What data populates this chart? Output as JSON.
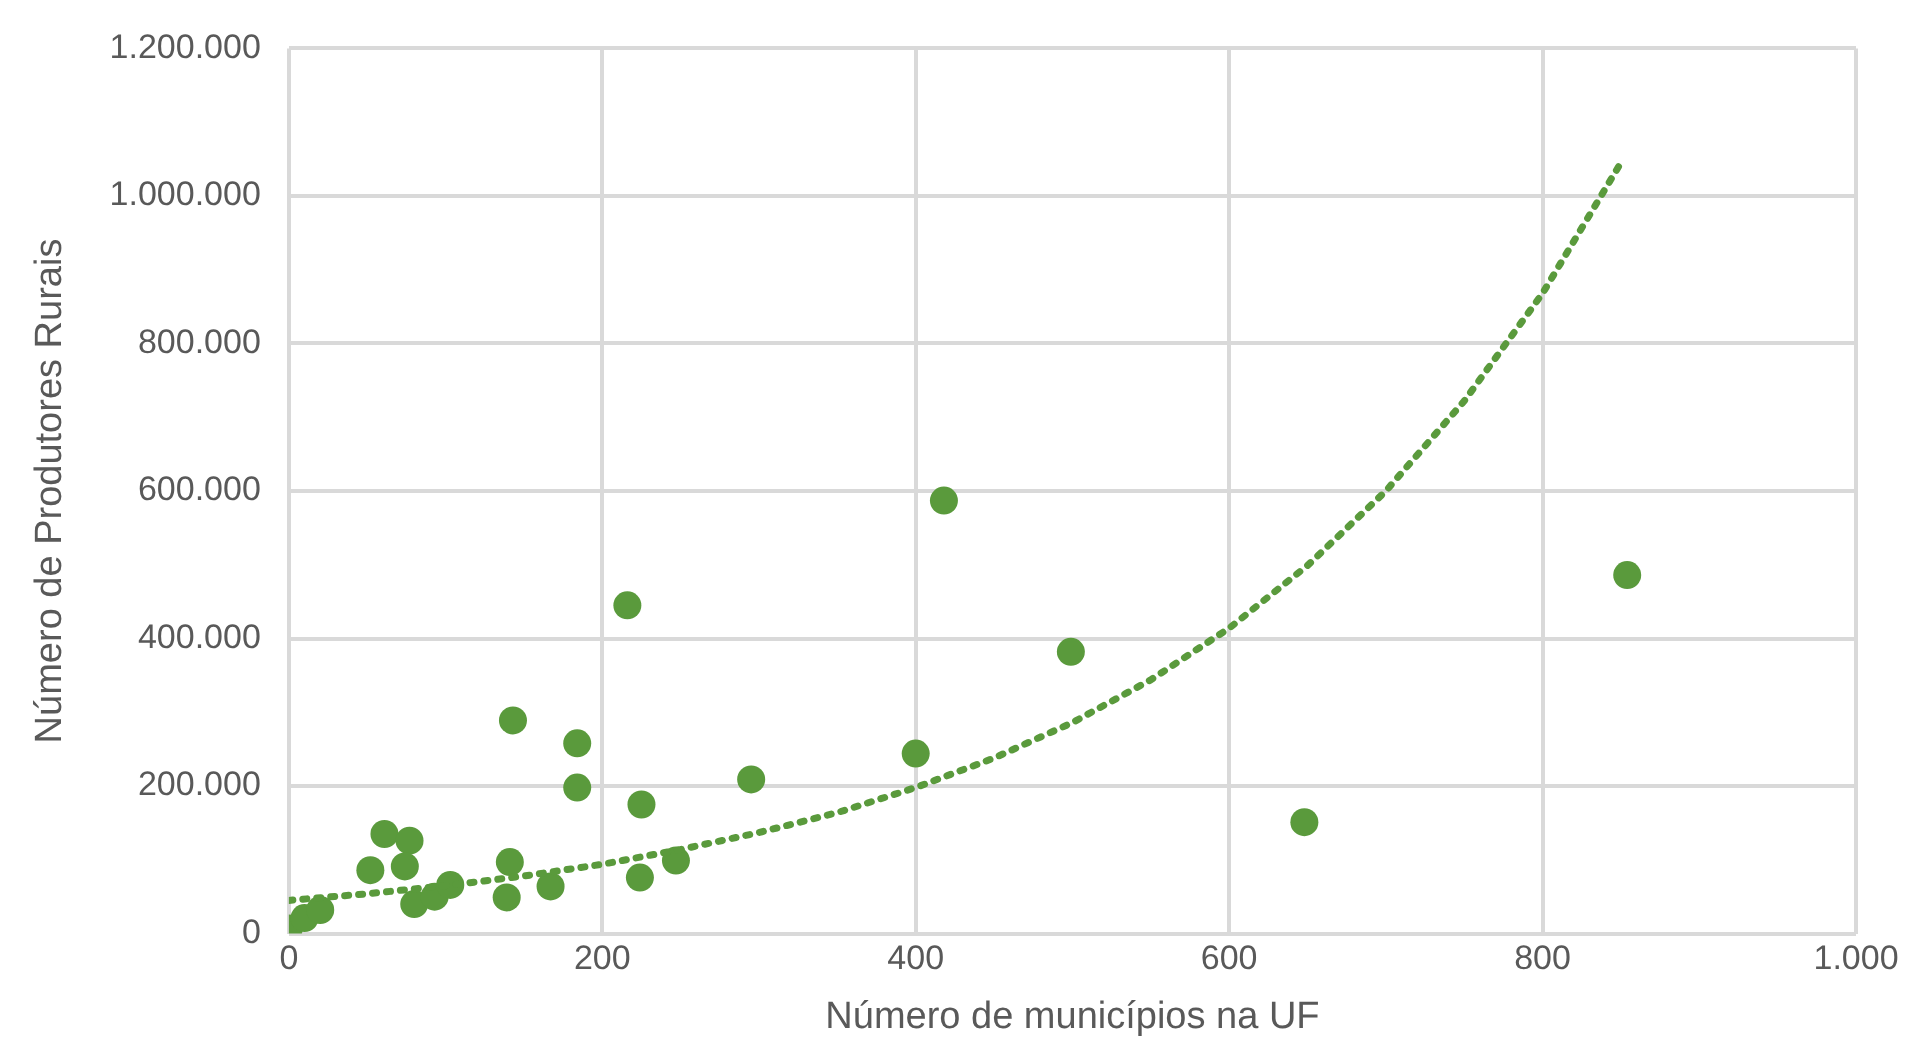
{
  "chart_data": {
    "type": "scatter",
    "xlabel": "Número de municípios na UF",
    "ylabel": "Número de Produtores Rurais",
    "xlim": [
      0,
      1000
    ],
    "xticks": [
      0,
      200,
      400,
      600,
      800,
      {
        "value": 1000,
        "label": "1.000"
      }
    ],
    "ylim": [
      0,
      1200000
    ],
    "yticks": [
      0,
      {
        "value": 200000,
        "label": "200.000"
      },
      {
        "value": 400000,
        "label": "400.000"
      },
      {
        "value": 600000,
        "label": "600.000"
      },
      {
        "value": 800000,
        "label": "800.000"
      },
      {
        "value": 1000000,
        "label": "1.000.000"
      },
      {
        "value": 1200000,
        "label": "1.200.000"
      }
    ],
    "grid": true,
    "legend": false,
    "marker": "circle",
    "series": [
      {
        "type": "scatter",
        "color": "#5a9a3c",
        "x": [
          854,
          648,
          418,
          499,
          400,
          295,
          247,
          216,
          143,
          184,
          184,
          225,
          224,
          141,
          139,
          167,
          61,
          77,
          74,
          52,
          80,
          93,
          103,
          0,
          10,
          20
        ],
        "values": [
          486000,
          151000,
          587000,
          382000,
          244000,
          209000,
          99000,
          445000,
          289000,
          258000,
          198000,
          175000,
          76000,
          97000,
          49000,
          64000,
          135000,
          126000,
          91000,
          86000,
          40000,
          50000,
          66000,
          7000,
          21000,
          32000
        ]
      },
      {
        "type": "line",
        "color": "#5a9a3c",
        "line_style": "dotted",
        "marker": "none",
        "x": [
          0,
          50,
          100,
          150,
          200,
          250,
          300,
          350,
          400,
          450,
          500,
          550,
          600,
          650,
          700,
          750,
          800,
          850
        ],
        "values": [
          45000,
          54000,
          65000,
          78000,
          94000,
          114000,
          137000,
          164000,
          198000,
          238000,
          286000,
          344000,
          414000,
          499000,
          600000,
          722000,
          868000,
          1045000
        ]
      }
    ]
  }
}
